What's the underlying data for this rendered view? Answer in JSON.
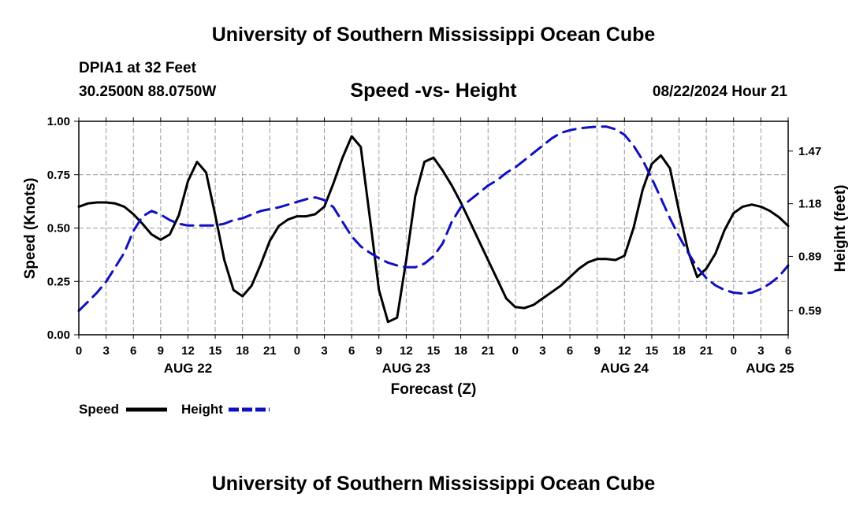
{
  "page": {
    "title_top": "University of Southern Mississippi Ocean Cube",
    "title_bottom": "University of Southern Mississippi Ocean Cube",
    "station": "DPIA1 at 32 Feet",
    "coords": "30.2500N  88.0750W",
    "subtitle": "Speed -vs- Height",
    "datetime": "08/22/2024 Hour 21"
  },
  "colors": {
    "speed": "#000000",
    "height": "#1010c0",
    "grid": "#999999"
  },
  "chart_data": {
    "type": "line",
    "title": "Speed -vs- Height",
    "xlabel": "Forecast (Z)",
    "ylabel": "Speed (Knots)",
    "y2label": "Height (feet)",
    "x_unit": "hours since AUG 22 00Z",
    "xlim": [
      0,
      78
    ],
    "ylim": [
      0,
      1
    ],
    "y2lim": [
      0.458,
      1.634
    ],
    "y_ticks": [
      "0.00",
      "0.25",
      "0.50",
      "0.75",
      "1.00"
    ],
    "y2_ticks": [
      {
        "label": "0.59",
        "value": 0.59
      },
      {
        "label": "0.89",
        "value": 0.89
      },
      {
        "label": "1.18",
        "value": 1.18
      },
      {
        "label": "1.47",
        "value": 1.47
      }
    ],
    "x_ticks": [
      {
        "h": 0,
        "label": "0"
      },
      {
        "h": 3,
        "label": "3"
      },
      {
        "h": 6,
        "label": "6"
      },
      {
        "h": 9,
        "label": "9"
      },
      {
        "h": 12,
        "label": "12"
      },
      {
        "h": 15,
        "label": "15"
      },
      {
        "h": 18,
        "label": "18"
      },
      {
        "h": 21,
        "label": "21"
      },
      {
        "h": 24,
        "label": "0"
      },
      {
        "h": 27,
        "label": "3"
      },
      {
        "h": 30,
        "label": "6"
      },
      {
        "h": 33,
        "label": "9"
      },
      {
        "h": 36,
        "label": "12"
      },
      {
        "h": 39,
        "label": "15"
      },
      {
        "h": 42,
        "label": "18"
      },
      {
        "h": 45,
        "label": "21"
      },
      {
        "h": 48,
        "label": "0"
      },
      {
        "h": 51,
        "label": "3"
      },
      {
        "h": 54,
        "label": "6"
      },
      {
        "h": 57,
        "label": "9"
      },
      {
        "h": 60,
        "label": "12"
      },
      {
        "h": 63,
        "label": "15"
      },
      {
        "h": 66,
        "label": "18"
      },
      {
        "h": 69,
        "label": "21"
      },
      {
        "h": 72,
        "label": "0"
      },
      {
        "h": 75,
        "label": "3"
      },
      {
        "h": 78,
        "label": "6"
      }
    ],
    "date_labels": [
      {
        "h": 12,
        "label": "AUG 22"
      },
      {
        "h": 36,
        "label": "AUG 23"
      },
      {
        "h": 60,
        "label": "AUG 24"
      },
      {
        "h": 76,
        "label": "AUG 25"
      }
    ],
    "series": [
      {
        "name": "Speed",
        "axis": "left",
        "style": "solid",
        "x": [
          0,
          1,
          2,
          3,
          4,
          5,
          6,
          7,
          8,
          9,
          10,
          11,
          12,
          13,
          14,
          15,
          16,
          17,
          18,
          19,
          20,
          21,
          22,
          23,
          24,
          25,
          26,
          27,
          28,
          29,
          30,
          31,
          32,
          33,
          34,
          35,
          36,
          37,
          38,
          39,
          40,
          41,
          42,
          43,
          44,
          45,
          46,
          47,
          48,
          49,
          50,
          51,
          52,
          53,
          54,
          55,
          56,
          57,
          58,
          59,
          60,
          61,
          62,
          63,
          64,
          65,
          66,
          67,
          68,
          69,
          70,
          71,
          72,
          73,
          74,
          75,
          76,
          77,
          78
        ],
        "values": [
          0.6,
          0.615,
          0.62,
          0.62,
          0.615,
          0.6,
          0.565,
          0.52,
          0.47,
          0.445,
          0.47,
          0.56,
          0.72,
          0.81,
          0.76,
          0.56,
          0.35,
          0.21,
          0.18,
          0.23,
          0.33,
          0.44,
          0.51,
          0.54,
          0.555,
          0.555,
          0.565,
          0.6,
          0.71,
          0.83,
          0.93,
          0.88,
          0.55,
          0.21,
          0.06,
          0.08,
          0.35,
          0.65,
          0.81,
          0.83,
          0.77,
          0.7,
          0.62,
          0.53,
          0.44,
          0.35,
          0.26,
          0.17,
          0.13,
          0.125,
          0.14,
          0.17,
          0.2,
          0.23,
          0.27,
          0.31,
          0.34,
          0.355,
          0.355,
          0.35,
          0.37,
          0.5,
          0.68,
          0.8,
          0.84,
          0.78,
          0.58,
          0.39,
          0.27,
          0.31,
          0.38,
          0.49,
          0.57,
          0.6,
          0.61,
          0.6,
          0.58,
          0.55,
          0.51
        ]
      },
      {
        "name": "Height",
        "axis": "right",
        "style": "dashed",
        "x": [
          0,
          1,
          2,
          3,
          4,
          5,
          6,
          7,
          8,
          9,
          10,
          11,
          12,
          13,
          14,
          15,
          16,
          17,
          18,
          19,
          20,
          21,
          22,
          23,
          24,
          25,
          26,
          27,
          28,
          29,
          30,
          31,
          32,
          33,
          34,
          35,
          36,
          37,
          38,
          39,
          40,
          41,
          42,
          43,
          44,
          45,
          46,
          47,
          48,
          49,
          50,
          51,
          52,
          53,
          54,
          55,
          56,
          57,
          58,
          59,
          60,
          61,
          62,
          63,
          64,
          65,
          66,
          67,
          68,
          69,
          70,
          71,
          72,
          73,
          74,
          75,
          76,
          77,
          78
        ],
        "values": [
          0.59,
          0.64,
          0.69,
          0.75,
          0.83,
          0.91,
          1.03,
          1.11,
          1.14,
          1.12,
          1.09,
          1.07,
          1.06,
          1.06,
          1.06,
          1.06,
          1.07,
          1.09,
          1.1,
          1.12,
          1.14,
          1.15,
          1.16,
          1.175,
          1.19,
          1.205,
          1.215,
          1.2,
          1.16,
          1.08,
          1.0,
          0.945,
          0.91,
          0.88,
          0.855,
          0.84,
          0.83,
          0.83,
          0.85,
          0.89,
          0.96,
          1.08,
          1.16,
          1.2,
          1.24,
          1.28,
          1.31,
          1.35,
          1.38,
          1.42,
          1.46,
          1.5,
          1.54,
          1.57,
          1.585,
          1.595,
          1.6,
          1.605,
          1.605,
          1.59,
          1.56,
          1.5,
          1.42,
          1.32,
          1.21,
          1.1,
          1.0,
          0.91,
          0.83,
          0.77,
          0.73,
          0.705,
          0.69,
          0.685,
          0.69,
          0.71,
          0.74,
          0.78,
          0.84
        ]
      }
    ],
    "legend": [
      {
        "label": "Speed",
        "style": "solid"
      },
      {
        "label": "Height",
        "style": "dashed"
      }
    ],
    "legend_position": "bottom-left"
  }
}
